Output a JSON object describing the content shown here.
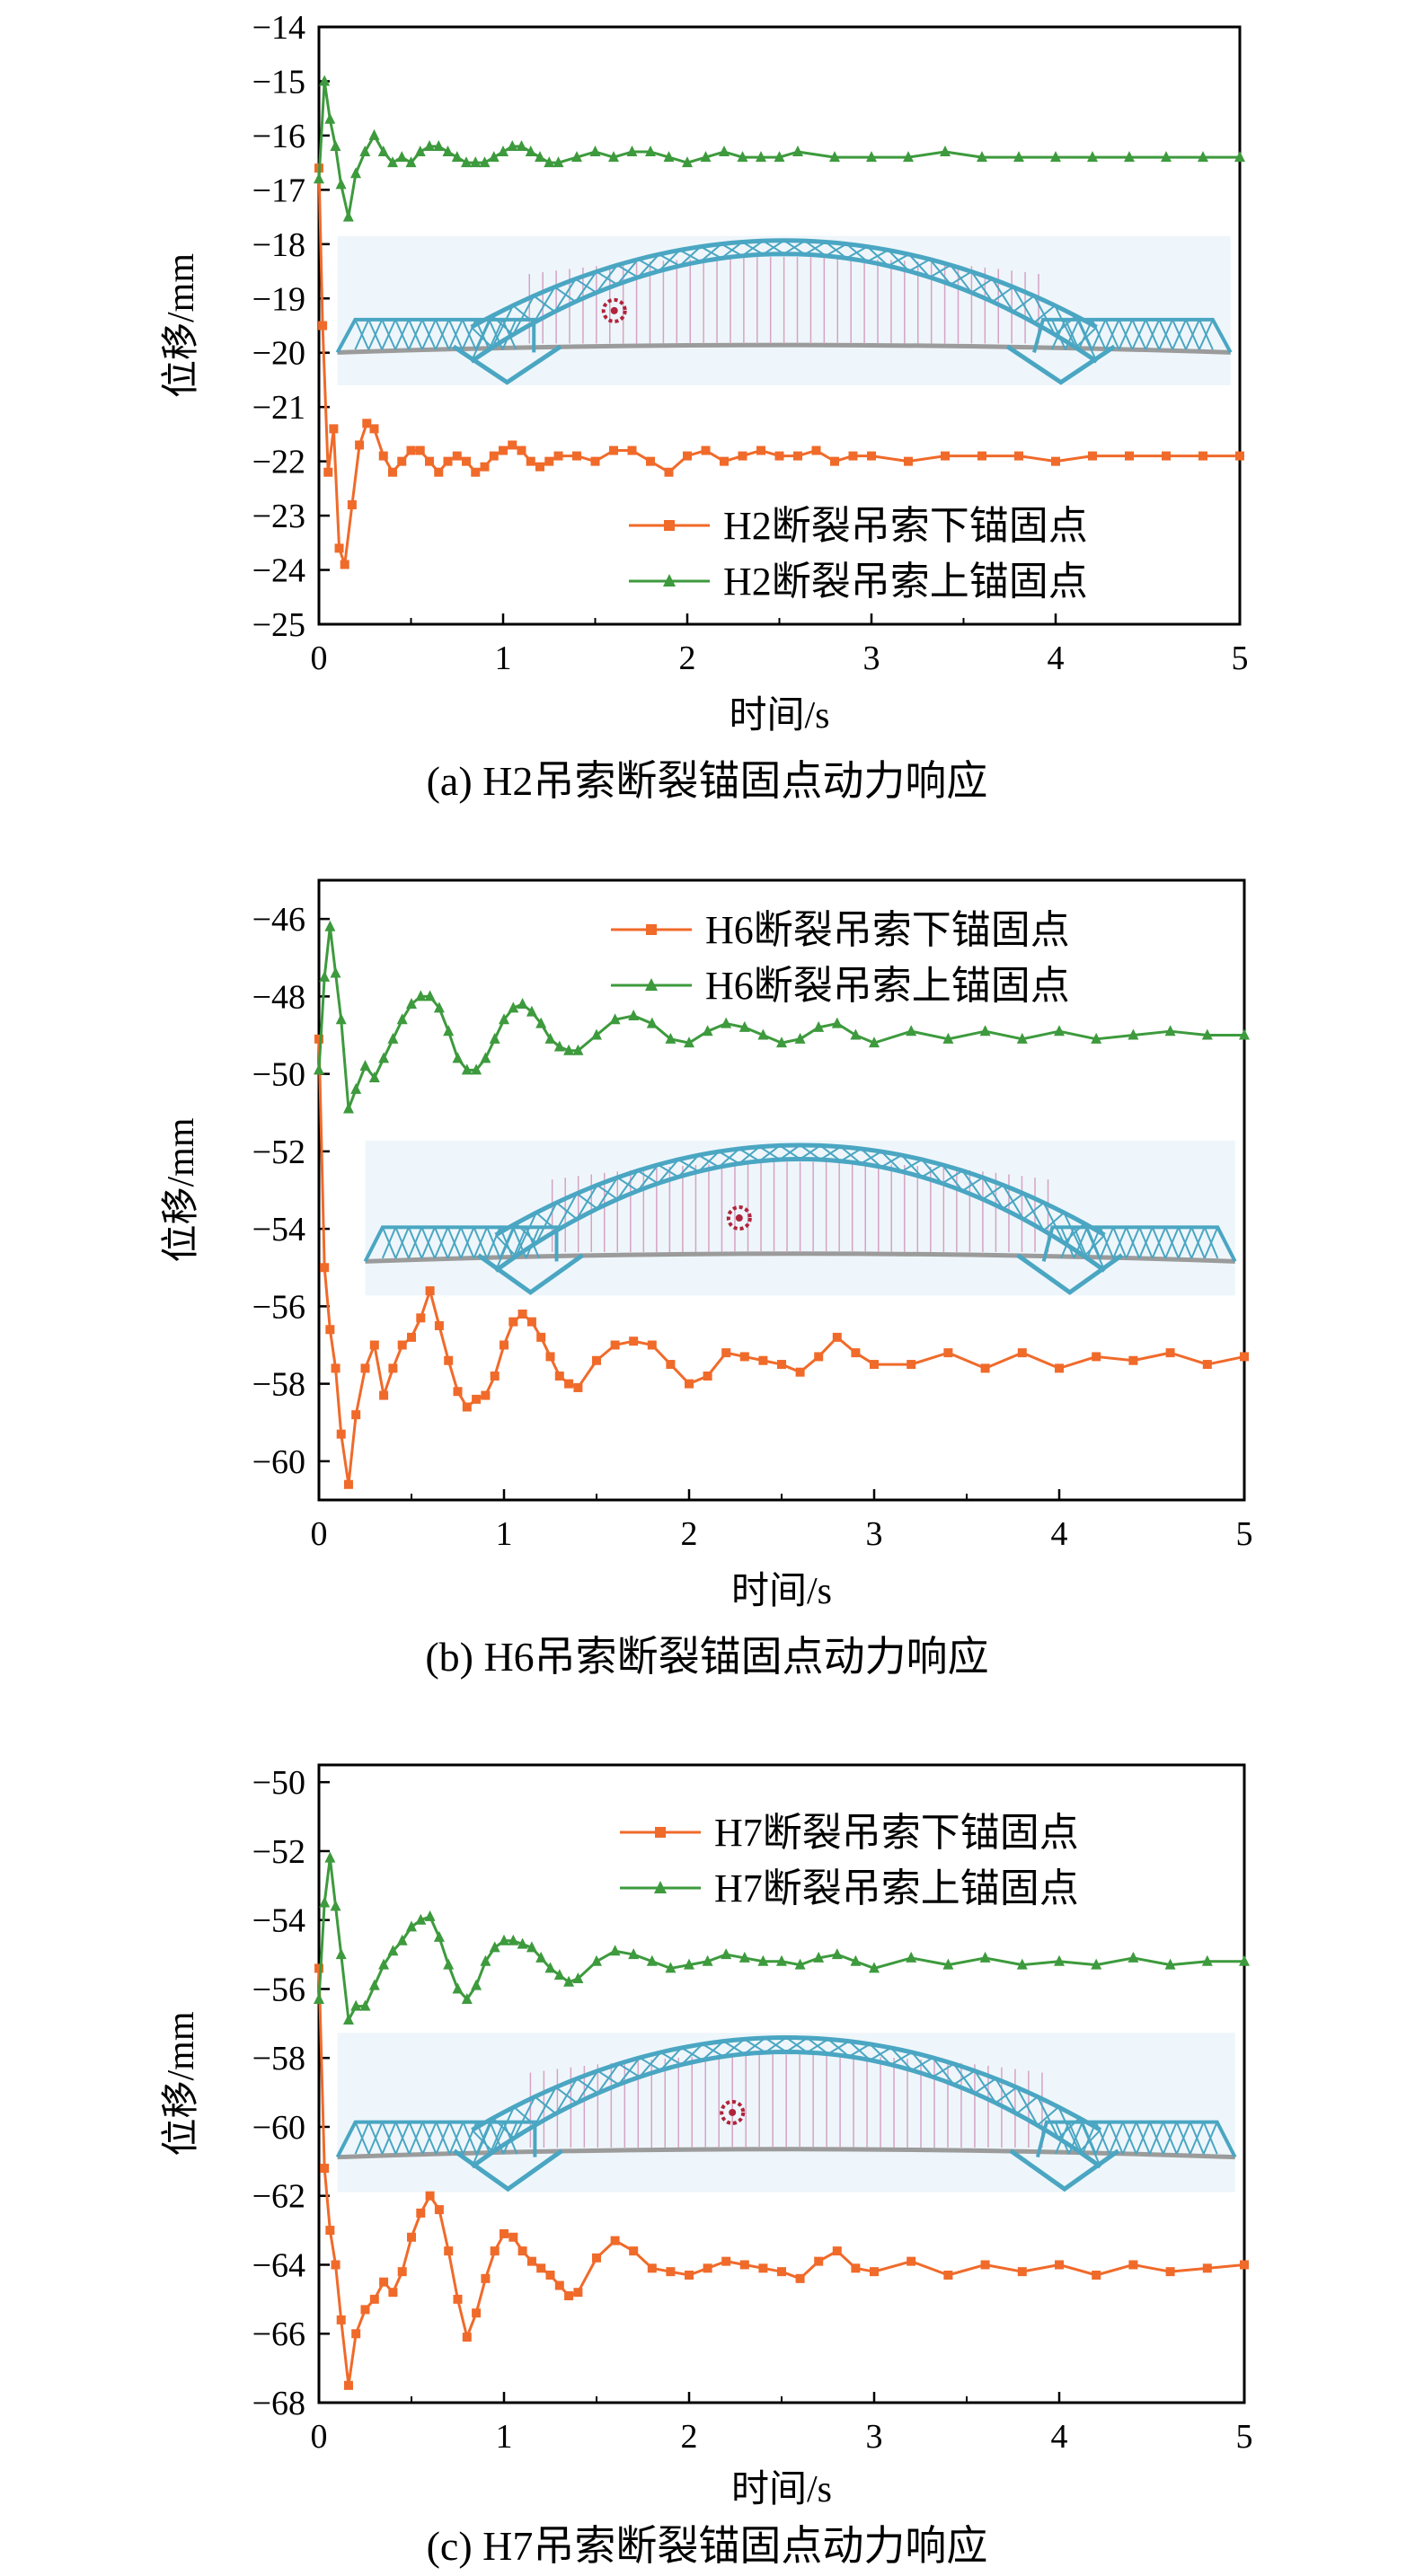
{
  "chart_data": [
    {
      "type": "line",
      "caption": "(a) H2吊索断裂锚固点动力响应",
      "xlabel": "时间/s",
      "ylabel": "位移/mm",
      "xlim": [
        0,
        5
      ],
      "ylim": [
        -25,
        -14
      ],
      "xticks": [
        "0",
        "1",
        "2",
        "3",
        "4",
        "5"
      ],
      "yticks": [
        "−14",
        "−15",
        "−16",
        "−17",
        "−18",
        "−19",
        "−20",
        "−21",
        "−22",
        "−23",
        "−24",
        "−25"
      ],
      "legend_position": "center-right",
      "series": [
        {
          "name": "H2断裂吊索下锚固点",
          "color": "#f06a2a",
          "marker": "square",
          "x": [
            0,
            0.02,
            0.05,
            0.08,
            0.11,
            0.14,
            0.18,
            0.22,
            0.26,
            0.3,
            0.35,
            0.4,
            0.45,
            0.5,
            0.55,
            0.6,
            0.65,
            0.7,
            0.75,
            0.8,
            0.85,
            0.9,
            0.95,
            1.0,
            1.05,
            1.1,
            1.15,
            1.2,
            1.25,
            1.3,
            1.4,
            1.5,
            1.6,
            1.7,
            1.8,
            1.9,
            2.0,
            2.1,
            2.2,
            2.3,
            2.4,
            2.5,
            2.6,
            2.7,
            2.8,
            2.9,
            3.0,
            3.2,
            3.4,
            3.6,
            3.8,
            4.0,
            4.2,
            4.4,
            4.6,
            4.8,
            5.0
          ],
          "y": [
            -16.6,
            -19.5,
            -22.2,
            -21.4,
            -23.6,
            -23.9,
            -22.8,
            -21.7,
            -21.3,
            -21.4,
            -21.9,
            -22.2,
            -22.0,
            -21.8,
            -21.8,
            -22.0,
            -22.2,
            -22.0,
            -21.9,
            -22.0,
            -22.2,
            -22.1,
            -21.9,
            -21.8,
            -21.7,
            -21.8,
            -22.0,
            -22.1,
            -22.0,
            -21.9,
            -21.9,
            -22.0,
            -21.8,
            -21.8,
            -22.0,
            -22.2,
            -21.9,
            -21.8,
            -22.0,
            -21.9,
            -21.8,
            -21.9,
            -21.9,
            -21.8,
            -22.0,
            -21.9,
            -21.9,
            -22.0,
            -21.9,
            -21.9,
            -21.9,
            -22.0,
            -21.9,
            -21.9,
            -21.9,
            -21.9,
            -21.9
          ]
        },
        {
          "name": "H2断裂吊索上锚固点",
          "color": "#3d9a3d",
          "marker": "triangle",
          "x": [
            0,
            0.03,
            0.06,
            0.09,
            0.12,
            0.16,
            0.2,
            0.25,
            0.3,
            0.35,
            0.4,
            0.45,
            0.5,
            0.55,
            0.6,
            0.65,
            0.7,
            0.75,
            0.8,
            0.85,
            0.9,
            0.95,
            1.0,
            1.05,
            1.1,
            1.15,
            1.2,
            1.25,
            1.3,
            1.4,
            1.5,
            1.6,
            1.7,
            1.8,
            1.9,
            2.0,
            2.1,
            2.2,
            2.3,
            2.4,
            2.5,
            2.6,
            2.8,
            3.0,
            3.2,
            3.4,
            3.6,
            3.8,
            4.0,
            4.2,
            4.4,
            4.6,
            4.8,
            5.0
          ],
          "y": [
            -16.8,
            -15.0,
            -15.7,
            -16.2,
            -16.9,
            -17.5,
            -16.7,
            -16.3,
            -16.0,
            -16.3,
            -16.5,
            -16.4,
            -16.5,
            -16.3,
            -16.2,
            -16.2,
            -16.3,
            -16.4,
            -16.5,
            -16.5,
            -16.5,
            -16.4,
            -16.3,
            -16.2,
            -16.2,
            -16.3,
            -16.4,
            -16.5,
            -16.5,
            -16.4,
            -16.3,
            -16.4,
            -16.3,
            -16.3,
            -16.4,
            -16.5,
            -16.4,
            -16.3,
            -16.4,
            -16.4,
            -16.4,
            -16.3,
            -16.4,
            -16.4,
            -16.4,
            -16.3,
            -16.4,
            -16.4,
            -16.4,
            -16.4,
            -16.4,
            -16.4,
            -16.4,
            -16.4
          ]
        }
      ]
    },
    {
      "type": "line",
      "caption": "(b) H6吊索断裂锚固点动力响应",
      "xlabel": "时间/s",
      "ylabel": "位移/mm",
      "xlim": [
        0,
        5
      ],
      "ylim": [
        -61,
        -45
      ],
      "xticks": [
        "0",
        "1",
        "2",
        "3",
        "4",
        "5"
      ],
      "yticks": [
        "−46",
        "−48",
        "−50",
        "−52",
        "−54",
        "−56",
        "−58",
        "−60"
      ],
      "legend_position": "top-right",
      "series": [
        {
          "name": "H6断裂吊索下锚固点",
          "color": "#f06a2a",
          "marker": "square",
          "x": [
            0,
            0.03,
            0.06,
            0.09,
            0.12,
            0.16,
            0.2,
            0.25,
            0.3,
            0.35,
            0.4,
            0.45,
            0.5,
            0.55,
            0.6,
            0.65,
            0.7,
            0.75,
            0.8,
            0.85,
            0.9,
            0.95,
            1.0,
            1.05,
            1.1,
            1.15,
            1.2,
            1.25,
            1.3,
            1.35,
            1.4,
            1.5,
            1.6,
            1.7,
            1.8,
            1.9,
            2.0,
            2.1,
            2.2,
            2.3,
            2.4,
            2.5,
            2.6,
            2.7,
            2.8,
            2.9,
            3.0,
            3.2,
            3.4,
            3.6,
            3.8,
            4.0,
            4.2,
            4.4,
            4.6,
            4.8,
            5.0
          ],
          "y": [
            -49.1,
            -55.0,
            -56.6,
            -57.6,
            -59.3,
            -60.6,
            -58.8,
            -57.6,
            -57.0,
            -58.3,
            -57.6,
            -57.0,
            -56.8,
            -56.3,
            -55.6,
            -56.5,
            -57.4,
            -58.2,
            -58.6,
            -58.4,
            -58.3,
            -57.8,
            -57.0,
            -56.4,
            -56.2,
            -56.4,
            -56.8,
            -57.3,
            -57.8,
            -58.0,
            -58.1,
            -57.4,
            -57.0,
            -56.9,
            -57.0,
            -57.5,
            -58.0,
            -57.8,
            -57.2,
            -57.3,
            -57.4,
            -57.5,
            -57.7,
            -57.3,
            -56.8,
            -57.2,
            -57.5,
            -57.5,
            -57.2,
            -57.6,
            -57.2,
            -57.6,
            -57.3,
            -57.4,
            -57.2,
            -57.5,
            -57.3
          ]
        },
        {
          "name": "H6断裂吊索上锚固点",
          "color": "#3d9a3d",
          "marker": "triangle",
          "x": [
            0,
            0.03,
            0.06,
            0.09,
            0.12,
            0.16,
            0.2,
            0.25,
            0.3,
            0.35,
            0.4,
            0.45,
            0.5,
            0.55,
            0.6,
            0.65,
            0.7,
            0.75,
            0.8,
            0.85,
            0.9,
            0.95,
            1.0,
            1.05,
            1.1,
            1.15,
            1.2,
            1.25,
            1.3,
            1.35,
            1.4,
            1.5,
            1.6,
            1.7,
            1.8,
            1.9,
            2.0,
            2.1,
            2.2,
            2.3,
            2.4,
            2.5,
            2.6,
            2.7,
            2.8,
            2.9,
            3.0,
            3.2,
            3.4,
            3.6,
            3.8,
            4.0,
            4.2,
            4.4,
            4.6,
            4.8,
            5.0
          ],
          "y": [
            -49.9,
            -47.5,
            -46.2,
            -47.4,
            -48.6,
            -50.9,
            -50.4,
            -49.8,
            -50.1,
            -49.6,
            -49.1,
            -48.6,
            -48.2,
            -48.0,
            -48.0,
            -48.3,
            -48.9,
            -49.6,
            -49.9,
            -49.9,
            -49.6,
            -49.1,
            -48.6,
            -48.3,
            -48.2,
            -48.4,
            -48.7,
            -49.1,
            -49.3,
            -49.4,
            -49.4,
            -49.0,
            -48.6,
            -48.5,
            -48.7,
            -49.1,
            -49.2,
            -48.9,
            -48.7,
            -48.8,
            -49.0,
            -49.2,
            -49.1,
            -48.8,
            -48.7,
            -49.0,
            -49.2,
            -48.9,
            -49.1,
            -48.9,
            -49.1,
            -48.9,
            -49.1,
            -49.0,
            -48.9,
            -49.0,
            -49.0
          ]
        }
      ]
    },
    {
      "type": "line",
      "caption": "(c) H7吊索断裂锚固点动力响应",
      "xlabel": "时间/s",
      "ylabel": "位移/mm",
      "xlim": [
        0,
        5
      ],
      "ylim": [
        -68,
        -49.5
      ],
      "xticks": [
        "0",
        "1",
        "2",
        "3",
        "4",
        "5"
      ],
      "yticks": [
        "−50",
        "−52",
        "−54",
        "−56",
        "−58",
        "−60",
        "−62",
        "−64",
        "−66",
        "−68"
      ],
      "legend_position": "top-right",
      "series": [
        {
          "name": "H7断裂吊索下锚固点",
          "color": "#f06a2a",
          "marker": "square",
          "x": [
            0,
            0.03,
            0.06,
            0.09,
            0.12,
            0.16,
            0.2,
            0.25,
            0.3,
            0.35,
            0.4,
            0.45,
            0.5,
            0.55,
            0.6,
            0.65,
            0.7,
            0.75,
            0.8,
            0.85,
            0.9,
            0.95,
            1.0,
            1.05,
            1.1,
            1.15,
            1.2,
            1.25,
            1.3,
            1.35,
            1.4,
            1.5,
            1.6,
            1.7,
            1.8,
            1.9,
            2.0,
            2.1,
            2.2,
            2.3,
            2.4,
            2.5,
            2.6,
            2.7,
            2.8,
            2.9,
            3.0,
            3.2,
            3.4,
            3.6,
            3.8,
            4.0,
            4.2,
            4.4,
            4.6,
            4.8,
            5.0
          ],
          "y": [
            -55.4,
            -61.2,
            -63.0,
            -64.0,
            -65.6,
            -67.5,
            -66.0,
            -65.3,
            -65.0,
            -64.5,
            -64.8,
            -64.2,
            -63.2,
            -62.5,
            -62.0,
            -62.4,
            -63.6,
            -65.0,
            -66.1,
            -65.4,
            -64.4,
            -63.6,
            -63.1,
            -63.2,
            -63.6,
            -63.9,
            -64.1,
            -64.3,
            -64.6,
            -64.9,
            -64.8,
            -63.8,
            -63.3,
            -63.6,
            -64.1,
            -64.2,
            -64.3,
            -64.1,
            -63.9,
            -64.0,
            -64.1,
            -64.2,
            -64.4,
            -63.9,
            -63.6,
            -64.1,
            -64.2,
            -63.9,
            -64.3,
            -64.0,
            -64.2,
            -64.0,
            -64.3,
            -64.0,
            -64.2,
            -64.1,
            -64.0
          ]
        },
        {
          "name": "H7断裂吊索上锚固点",
          "color": "#3d9a3d",
          "marker": "triangle",
          "x": [
            0,
            0.03,
            0.06,
            0.09,
            0.12,
            0.16,
            0.2,
            0.25,
            0.3,
            0.35,
            0.4,
            0.45,
            0.5,
            0.55,
            0.6,
            0.65,
            0.7,
            0.75,
            0.8,
            0.85,
            0.9,
            0.95,
            1.0,
            1.05,
            1.1,
            1.15,
            1.2,
            1.25,
            1.3,
            1.35,
            1.4,
            1.5,
            1.6,
            1.7,
            1.8,
            1.9,
            2.0,
            2.1,
            2.2,
            2.3,
            2.4,
            2.5,
            2.6,
            2.7,
            2.8,
            2.9,
            3.0,
            3.2,
            3.4,
            3.6,
            3.8,
            4.0,
            4.2,
            4.4,
            4.6,
            4.8,
            5.0
          ],
          "y": [
            -56.3,
            -53.5,
            -52.2,
            -53.6,
            -55.0,
            -56.9,
            -56.5,
            -56.5,
            -55.9,
            -55.3,
            -54.9,
            -54.6,
            -54.2,
            -54.0,
            -53.9,
            -54.5,
            -55.3,
            -56.0,
            -56.3,
            -55.9,
            -55.2,
            -54.8,
            -54.6,
            -54.6,
            -54.7,
            -54.8,
            -55.1,
            -55.4,
            -55.6,
            -55.8,
            -55.7,
            -55.2,
            -54.9,
            -55.0,
            -55.2,
            -55.4,
            -55.3,
            -55.2,
            -55.0,
            -55.1,
            -55.2,
            -55.2,
            -55.3,
            -55.1,
            -55.0,
            -55.2,
            -55.4,
            -55.1,
            -55.3,
            -55.1,
            -55.3,
            -55.2,
            -55.3,
            -55.1,
            -55.3,
            -55.2,
            -55.2
          ]
        }
      ]
    }
  ]
}
